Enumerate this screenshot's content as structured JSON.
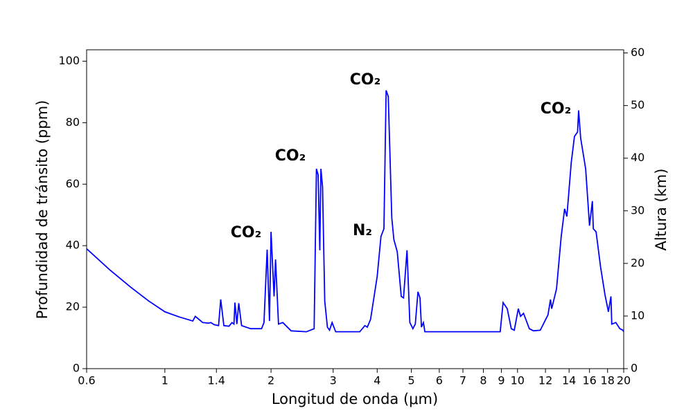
{
  "chart_data": {
    "type": "line",
    "xlabel": "Longitud de onda (μm)",
    "ylabel": "Profundidad de tránsito (ppm)",
    "y2label": "Altura (km)",
    "xscale": "log",
    "color": "#0000ff",
    "x": [
      0.6,
      0.7,
      0.8,
      0.9,
      1.0,
      1.1,
      1.2,
      1.22,
      1.25,
      1.28,
      1.33,
      1.35,
      1.38,
      1.42,
      1.44,
      1.47,
      1.52,
      1.55,
      1.57,
      1.58,
      1.6,
      1.62,
      1.65,
      1.75,
      1.88,
      1.91,
      1.95,
      1.98,
      2.0,
      2.04,
      2.06,
      2.1,
      2.16,
      2.28,
      2.52,
      2.65,
      2.69,
      2.72,
      2.75,
      2.77,
      2.8,
      2.84,
      2.89,
      2.93,
      2.98,
      3.05,
      3.26,
      3.57,
      3.69,
      3.75,
      3.83,
      4.0,
      4.1,
      4.18,
      4.24,
      4.3,
      4.4,
      4.46,
      4.56,
      4.68,
      4.75,
      4.86,
      4.95,
      5.05,
      5.13,
      5.22,
      5.29,
      5.34,
      5.41,
      5.46,
      8.93,
      9.1,
      9.35,
      9.6,
      9.79,
      10.05,
      10.2,
      10.4,
      10.8,
      11.1,
      11.6,
      12.2,
      12.4,
      12.5,
      12.9,
      13.3,
      13.6,
      13.8,
      14.2,
      14.5,
      14.8,
      14.9,
      15.1,
      15.6,
      16.0,
      16.3,
      16.4,
      16.7,
      17.2,
      17.7,
      18.1,
      18.4,
      18.5,
      19.0,
      19.5,
      19.9,
      20
    ],
    "values": [
      39,
      32,
      26.5,
      22,
      18.5,
      16.8,
      15.5,
      17,
      16,
      15,
      14.8,
      15,
      14.3,
      14,
      22.5,
      14,
      13.8,
      15,
      14.5,
      21.5,
      14.5,
      21.3,
      14,
      13,
      13,
      15,
      38.7,
      15.5,
      44.5,
      23.5,
      35.5,
      14.5,
      15,
      12.3,
      12,
      13,
      65,
      63,
      38.5,
      65,
      59,
      22,
      13.5,
      12.5,
      15,
      12,
      12,
      12,
      14,
      13.5,
      16,
      30,
      43,
      45.5,
      90.5,
      88.5,
      49,
      42,
      38,
      23.5,
      23,
      38.5,
      15,
      13,
      14.5,
      25,
      23,
      13.5,
      15,
      12,
      12,
      21.5,
      19.5,
      13,
      12.5,
      19.5,
      17,
      18,
      13,
      12.3,
      12.5,
      17.5,
      22.5,
      19.5,
      26,
      43,
      52,
      49.5,
      67,
      75.5,
      77,
      84,
      75,
      65,
      46.5,
      54.5,
      45.5,
      44.5,
      33,
      24,
      18.5,
      23.5,
      14.5,
      15,
      13,
      12.5,
      12
    ],
    "xlim": [
      0.6,
      20
    ],
    "xticks": [
      0.6,
      1,
      1.4,
      2,
      3,
      4,
      5,
      6,
      7,
      8,
      9,
      10,
      12,
      14,
      16,
      18,
      20
    ],
    "ylim": [
      0,
      103.7
    ],
    "yticks": [
      0,
      20,
      40,
      60,
      80,
      100
    ],
    "y2lim": [
      0,
      60.6
    ],
    "y2ticks": [
      0,
      10,
      20,
      30,
      40,
      50,
      60
    ],
    "annotations": [
      "CO₂",
      "CO₂",
      "CO₂",
      "N₂",
      "CO₂"
    ]
  }
}
